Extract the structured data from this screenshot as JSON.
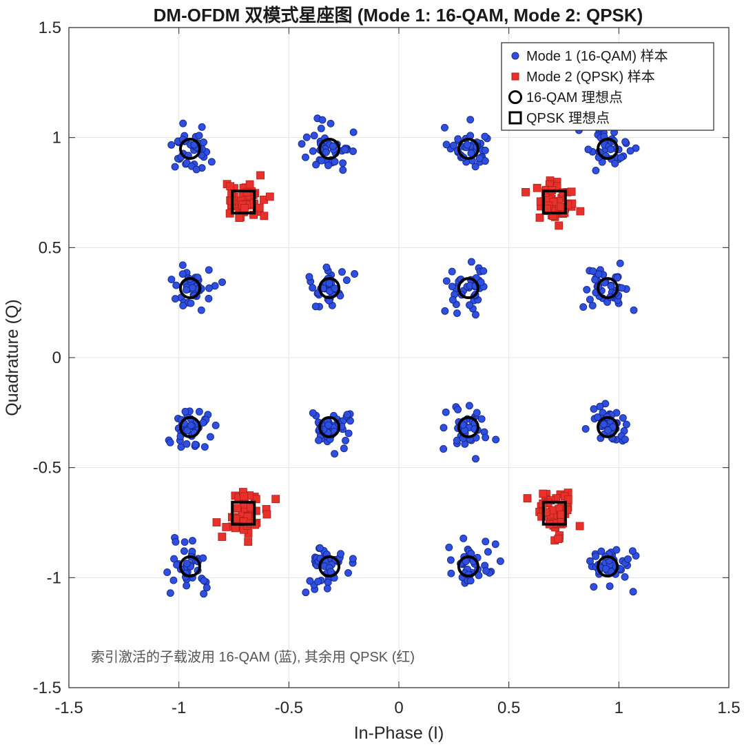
{
  "chart_data": {
    "type": "scatter",
    "title": "DM-OFDM 双模式星座图 (Mode 1: 16-QAM, Mode 2: QPSK)",
    "xlabel": "In-Phase (I)",
    "ylabel": "Quadrature (Q)",
    "xlim": [
      -1.5,
      1.5
    ],
    "ylim": [
      -1.5,
      1.5
    ],
    "xticks": [
      -1.5,
      -1,
      -0.5,
      0,
      0.5,
      1,
      1.5
    ],
    "yticks": [
      -1.5,
      -1,
      -0.5,
      0,
      0.5,
      1,
      1.5
    ],
    "xtick_labels": [
      "-1.5",
      "-1",
      "-0.5",
      "0",
      "0.5",
      "1",
      "1.5"
    ],
    "ytick_labels": [
      "-1.5",
      "-1",
      "-0.5",
      "0",
      "0.5",
      "1",
      "1.5"
    ],
    "grid": true,
    "legend_position": "top-right",
    "annotation": "索引激活的子载波用 16-QAM (蓝), 其余用 QPSK (红)",
    "series": [
      {
        "name": "Mode 1 (16-QAM) 样本",
        "marker": "circle",
        "color": "#2f4fe0",
        "edge": "#13258a",
        "cluster_centers": [
          [
            -0.949,
            0.949
          ],
          [
            -0.316,
            0.949
          ],
          [
            0.316,
            0.949
          ],
          [
            0.949,
            0.949
          ],
          [
            -0.949,
            0.316
          ],
          [
            -0.316,
            0.316
          ],
          [
            0.316,
            0.316
          ],
          [
            0.949,
            0.316
          ],
          [
            -0.949,
            -0.316
          ],
          [
            -0.316,
            -0.316
          ],
          [
            0.316,
            -0.316
          ],
          [
            0.949,
            -0.316
          ],
          [
            -0.949,
            -0.949
          ],
          [
            -0.316,
            -0.949
          ],
          [
            0.316,
            -0.949
          ],
          [
            0.949,
            -0.949
          ]
        ],
        "noise_std": 0.05,
        "samples_per_cluster": 40
      },
      {
        "name": "Mode 2 (QPSK) 样本",
        "marker": "square",
        "color": "#e8312b",
        "edge": "#b01e18",
        "cluster_centers": [
          [
            -0.707,
            0.707
          ],
          [
            0.707,
            0.707
          ],
          [
            -0.707,
            -0.707
          ],
          [
            0.707,
            -0.707
          ]
        ],
        "noise_std": 0.05,
        "samples_per_cluster": 45
      },
      {
        "name": "16-QAM 理想点",
        "marker": "circle-open",
        "color": "#000000",
        "points": [
          [
            -0.949,
            0.949
          ],
          [
            -0.316,
            0.949
          ],
          [
            0.316,
            0.949
          ],
          [
            0.949,
            0.949
          ],
          [
            -0.949,
            0.316
          ],
          [
            -0.316,
            0.316
          ],
          [
            0.316,
            0.316
          ],
          [
            0.949,
            0.316
          ],
          [
            -0.949,
            -0.316
          ],
          [
            -0.316,
            -0.316
          ],
          [
            0.316,
            -0.316
          ],
          [
            0.949,
            -0.316
          ],
          [
            -0.949,
            -0.949
          ],
          [
            -0.316,
            -0.949
          ],
          [
            0.316,
            -0.949
          ],
          [
            0.949,
            -0.949
          ]
        ]
      },
      {
        "name": "QPSK 理想点",
        "marker": "square-open",
        "color": "#000000",
        "points": [
          [
            -0.707,
            0.707
          ],
          [
            0.707,
            0.707
          ],
          [
            -0.707,
            -0.707
          ],
          [
            0.707,
            -0.707
          ]
        ]
      }
    ]
  }
}
